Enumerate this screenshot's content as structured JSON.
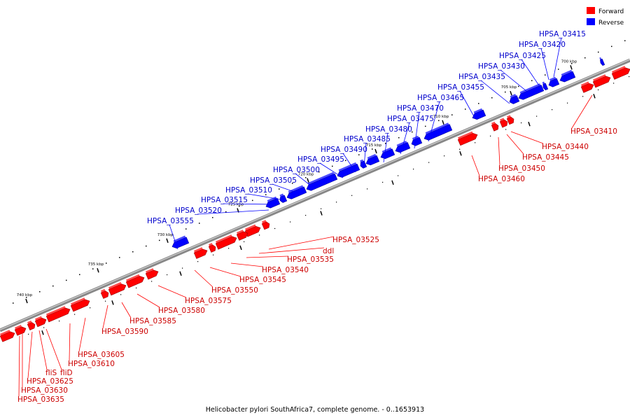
{
  "caption": "Helicobacter pylori SouthAfrica7, complete genome. - 0..1653913",
  "legend": [
    {
      "label": "Forward",
      "color": "#ff0000"
    },
    {
      "label": "Reverse",
      "color": "#0000ff"
    }
  ],
  "colors": {
    "forward": "#ff0000",
    "reverse": "#0000ff",
    "forward_label": "#cc0000",
    "reverse_label": "#0000cc"
  },
  "scale_labels": [
    "700 kbp",
    "705 kbp",
    "710 kbp",
    "715 kbp",
    "720 kbp",
    "725 kbp",
    "730 kbp",
    "735 kbp",
    "740 kbp"
  ],
  "reverse_labels": [
    "HPSA_03415",
    "HPSA_03420",
    "HPSA_03425",
    "HPSA_03430",
    "HPSA_03435",
    "HPSA_03455",
    "HPSA_03465",
    "HPSA_03470",
    "HPSA_03475",
    "HPSA_03480",
    "HPSA_03485",
    "HPSA_03490",
    "HPSA_03495",
    "HPSA_03500",
    "HPSA_03505",
    "HPSA_03510",
    "HPSA_03515",
    "HPSA_03520",
    "HPSA_03555"
  ],
  "forward_labels": [
    "HPSA_03410",
    "HPSA_03440",
    "HPSA_03445",
    "HPSA_03450",
    "HPSA_03460",
    "HPSA_03525",
    "ddl",
    "HPSA_03535",
    "HPSA_03540",
    "HPSA_03545",
    "HPSA_03550",
    "HPSA_03575",
    "HPSA_03580",
    "HPSA_03585",
    "HPSA_03590",
    "HPSA_03605",
    "HPSA_03610",
    "fliD",
    "fliS",
    "HPSA_03625",
    "HPSA_03630",
    "HPSA_03635"
  ]
}
